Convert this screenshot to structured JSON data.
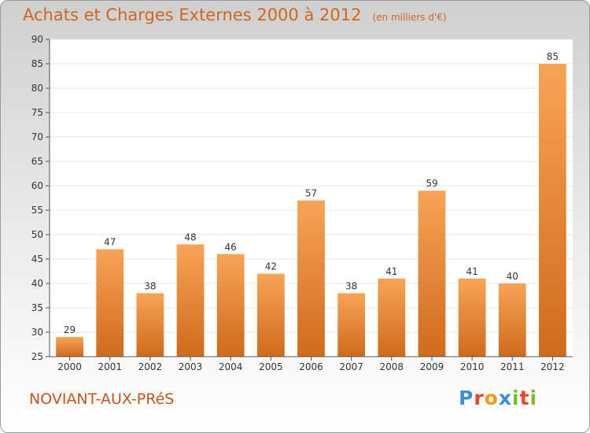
{
  "chart_data": {
    "type": "bar",
    "title": "Achats et Charges Externes 2000 à 2012",
    "subtitle": "(en milliers d'€)",
    "categories": [
      "2000",
      "2001",
      "2002",
      "2003",
      "2004",
      "2005",
      "2006",
      "2007",
      "2008",
      "2009",
      "2010",
      "2011",
      "2012"
    ],
    "values": [
      29,
      47,
      38,
      48,
      46,
      42,
      57,
      38,
      41,
      59,
      41,
      40,
      85
    ],
    "ylim": [
      25,
      90
    ],
    "yticks": [
      25,
      30,
      35,
      40,
      45,
      50,
      55,
      60,
      65,
      70,
      75,
      80,
      85,
      90
    ],
    "grid": true,
    "colors": {
      "bar_top": "#f7a456",
      "bar_bottom": "#d06a1c",
      "axis": "#555555",
      "grid": "#e6e6e6"
    }
  },
  "commune": "NOVIANT-AUX-PRéS",
  "brand": {
    "letters": [
      "P",
      "r",
      "o",
      "x",
      "i",
      "t",
      "i"
    ],
    "colors": [
      "#3a8fd6",
      "#e8412c",
      "#f29a1c",
      "#3a8fd6",
      "#7bbd2a",
      "#e8412c",
      "#7bbd2a"
    ]
  }
}
